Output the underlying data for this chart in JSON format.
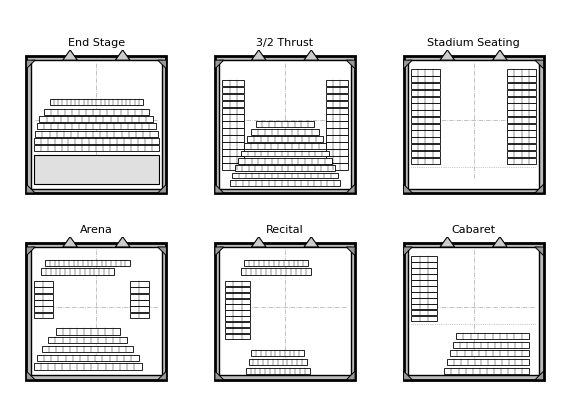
{
  "titles": [
    "End Stage",
    "3/2 Thrust",
    "Stadium Seating",
    "Arena",
    "Recital",
    "Cabaret"
  ],
  "bg_color": "#ffffff",
  "fig_width": 5.7,
  "fig_height": 4.16,
  "title_fontsize": 8,
  "wall_color": "#000000",
  "seat_ec": "#000000",
  "cross_color": "#aaaaaa"
}
